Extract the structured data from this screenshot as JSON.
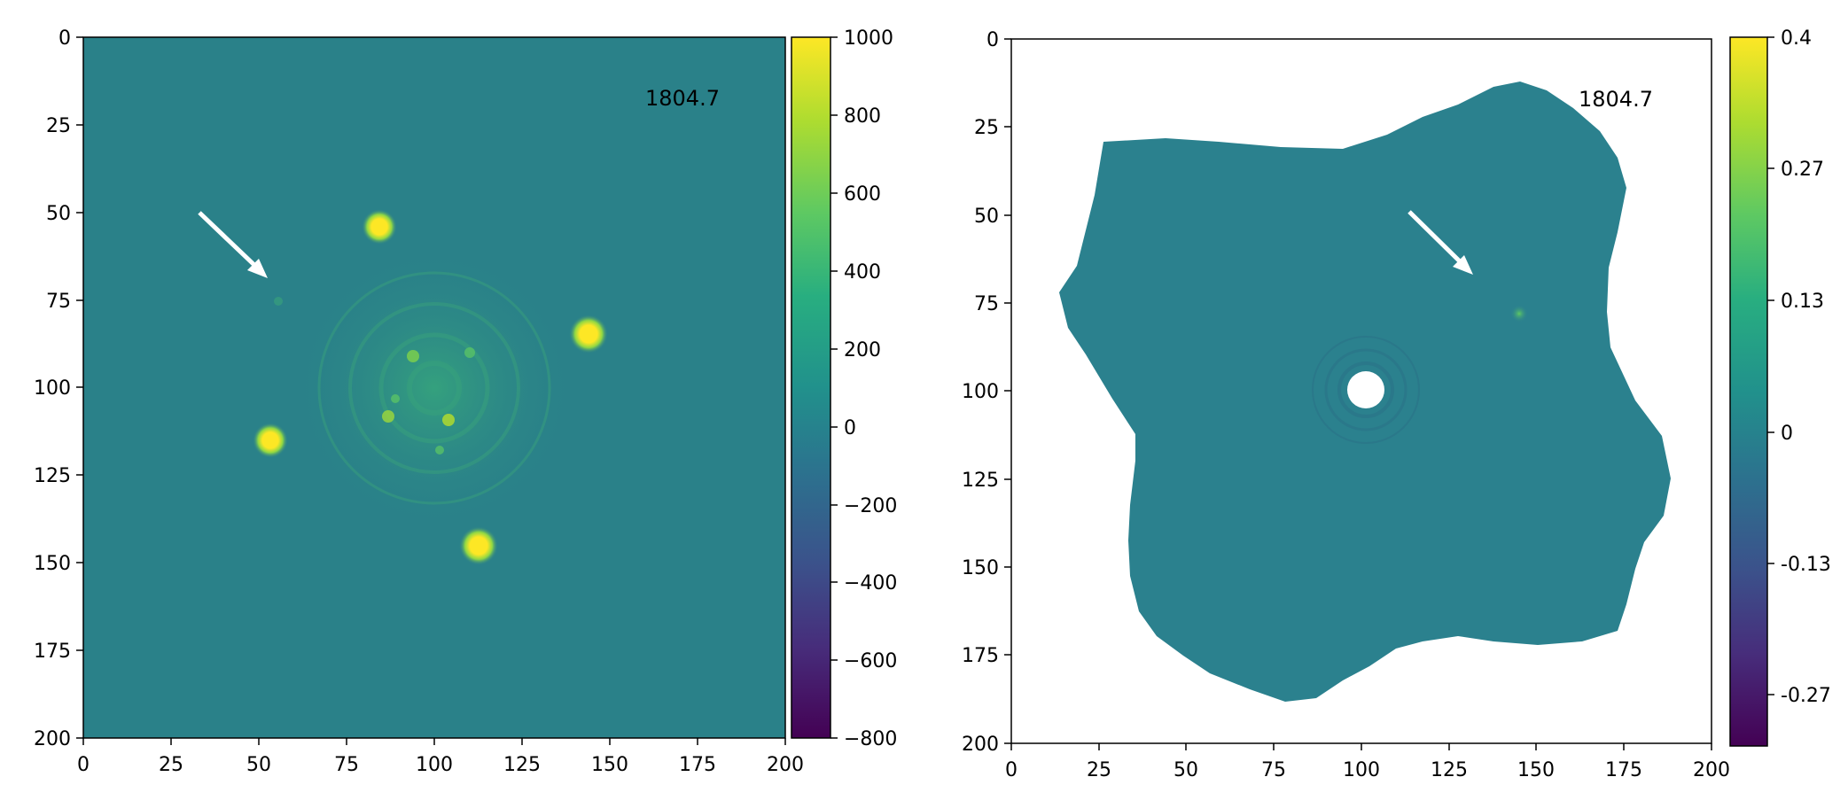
{
  "panels": [
    {
      "id": "left",
      "annotation": "1804.7",
      "x_ticks": [
        "0",
        "25",
        "50",
        "75",
        "100",
        "125",
        "150",
        "175",
        "200"
      ],
      "y_ticks": [
        "0",
        "25",
        "50",
        "75",
        "100",
        "125",
        "150",
        "175",
        "200"
      ],
      "colorbar": {
        "ticks": [
          "1000",
          "800",
          "600",
          "400",
          "200",
          "0",
          "−200",
          "−400",
          "−600",
          "−800"
        ],
        "colormap": "viridis",
        "range": [
          -800,
          1000
        ]
      },
      "background_color": "#2a8189",
      "arrow_color": "#ffffff"
    },
    {
      "id": "right",
      "annotation": "1804.7",
      "x_ticks": [
        "0",
        "25",
        "50",
        "75",
        "100",
        "125",
        "150",
        "175",
        "200"
      ],
      "y_ticks": [
        "0",
        "25",
        "50",
        "75",
        "100",
        "125",
        "150",
        "175",
        "200"
      ],
      "colorbar": {
        "ticks": [
          "0.4",
          "0.27",
          "0.13",
          "0",
          "-0.13",
          "-0.27"
        ],
        "colormap": "viridis",
        "range": [
          -0.4,
          0.4
        ]
      },
      "background_color": "#2b818e",
      "arrow_color": "#ffffff"
    }
  ]
}
